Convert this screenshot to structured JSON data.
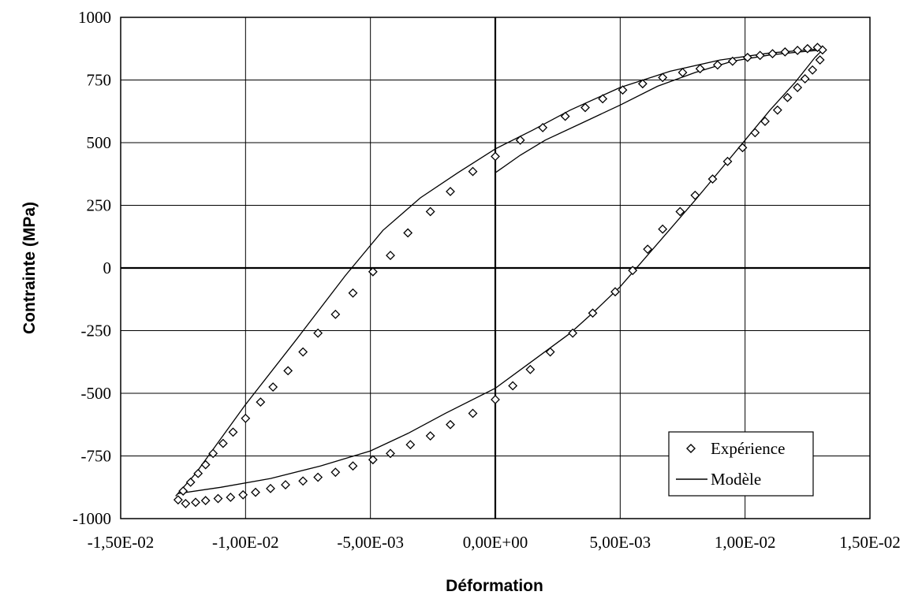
{
  "chart_data": {
    "type": "scatter",
    "title": "",
    "xlabel": "Déformation",
    "ylabel": "Contrainte (MPa)",
    "xlim": [
      -0.015,
      0.015
    ],
    "ylim": [
      -1000,
      1000
    ],
    "x_ticks": [
      -0.015,
      -0.01,
      -0.005,
      0,
      0.005,
      0.01,
      0.015
    ],
    "x_tick_labels": [
      "-1,50E-02",
      "-1,00E-02",
      "-5,00E-03",
      "0,00E+00",
      "5,00E-03",
      "1,00E-02",
      "1,50E-02"
    ],
    "y_ticks": [
      -1000,
      -750,
      -500,
      -250,
      0,
      250,
      500,
      750,
      1000
    ],
    "y_tick_labels": [
      "-1000",
      "-750",
      "-500",
      "-250",
      "0",
      "250",
      "500",
      "750",
      "1000"
    ],
    "grid": true,
    "legend_position": "bottom-right",
    "series": [
      {
        "name": "Expérience",
        "marker": "diamond",
        "color": "#000000",
        "points": [
          [
            0.0131,
            870
          ],
          [
            0.013,
            830
          ],
          [
            0.0127,
            790
          ],
          [
            0.0124,
            755
          ],
          [
            0.0121,
            720
          ],
          [
            0.0117,
            680
          ],
          [
            0.0113,
            630
          ],
          [
            0.0108,
            585
          ],
          [
            0.0104,
            540
          ],
          [
            0.0099,
            480
          ],
          [
            0.0093,
            425
          ],
          [
            0.0087,
            355
          ],
          [
            0.008,
            290
          ],
          [
            0.0074,
            225
          ],
          [
            0.0067,
            155
          ],
          [
            0.0061,
            75
          ],
          [
            0.0055,
            -10
          ],
          [
            0.0048,
            -95
          ],
          [
            0.0039,
            -180
          ],
          [
            0.0031,
            -260
          ],
          [
            0.0022,
            -335
          ],
          [
            0.0014,
            -405
          ],
          [
            0.0007,
            -470
          ],
          [
            0.0,
            -525
          ],
          [
            -0.0009,
            -580
          ],
          [
            -0.0018,
            -625
          ],
          [
            -0.0026,
            -670
          ],
          [
            -0.0034,
            -705
          ],
          [
            -0.0042,
            -740
          ],
          [
            -0.0049,
            -765
          ],
          [
            -0.0057,
            -790
          ],
          [
            -0.0064,
            -815
          ],
          [
            -0.0071,
            -835
          ],
          [
            -0.0077,
            -850
          ],
          [
            -0.0084,
            -865
          ],
          [
            -0.009,
            -880
          ],
          [
            -0.0096,
            -895
          ],
          [
            -0.0101,
            -905
          ],
          [
            -0.0106,
            -915
          ],
          [
            -0.0111,
            -920
          ],
          [
            -0.0116,
            -928
          ],
          [
            -0.012,
            -935
          ],
          [
            -0.0124,
            -940
          ],
          [
            -0.0127,
            -925
          ],
          [
            -0.0125,
            -890
          ],
          [
            -0.0122,
            -855
          ],
          [
            -0.0119,
            -820
          ],
          [
            -0.0116,
            -785
          ],
          [
            -0.0113,
            -740
          ],
          [
            -0.0109,
            -700
          ],
          [
            -0.0105,
            -655
          ],
          [
            -0.01,
            -600
          ],
          [
            -0.0094,
            -535
          ],
          [
            -0.0089,
            -475
          ],
          [
            -0.0083,
            -410
          ],
          [
            -0.0077,
            -335
          ],
          [
            -0.0071,
            -260
          ],
          [
            -0.0064,
            -185
          ],
          [
            -0.0057,
            -100
          ],
          [
            -0.0049,
            -15
          ],
          [
            -0.0042,
            50
          ],
          [
            -0.0035,
            140
          ],
          [
            -0.0026,
            225
          ],
          [
            -0.0018,
            305
          ],
          [
            -0.0009,
            385
          ],
          [
            0.0,
            445
          ],
          [
            0.001,
            510
          ],
          [
            0.0019,
            560
          ],
          [
            0.0028,
            605
          ],
          [
            0.0036,
            640
          ],
          [
            0.0043,
            675
          ],
          [
            0.0051,
            710
          ],
          [
            0.0059,
            735
          ],
          [
            0.0067,
            760
          ],
          [
            0.0075,
            780
          ],
          [
            0.0082,
            795
          ],
          [
            0.0089,
            810
          ],
          [
            0.0095,
            825
          ],
          [
            0.0101,
            840
          ],
          [
            0.0106,
            848
          ],
          [
            0.0111,
            855
          ],
          [
            0.0116,
            862
          ],
          [
            0.0121,
            868
          ],
          [
            0.0125,
            875
          ],
          [
            0.0129,
            880
          ]
        ]
      },
      {
        "name": "Modèle",
        "marker": "line",
        "color": "#000000",
        "points": [
          [
            0.0,
            380
          ],
          [
            0.001,
            450
          ],
          [
            0.002,
            510
          ],
          [
            0.0035,
            580
          ],
          [
            0.005,
            650
          ],
          [
            0.0065,
            725
          ],
          [
            0.008,
            780
          ],
          [
            0.0095,
            825
          ],
          [
            0.011,
            850
          ],
          [
            0.0122,
            862
          ],
          [
            0.0131,
            870
          ],
          [
            0.0128,
            840
          ],
          [
            0.012,
            740
          ],
          [
            0.011,
            630
          ],
          [
            0.01,
            510
          ],
          [
            0.009,
            390
          ],
          [
            0.008,
            270
          ],
          [
            0.007,
            155
          ],
          [
            0.006,
            40
          ],
          [
            0.005,
            -75
          ],
          [
            0.004,
            -170
          ],
          [
            0.003,
            -260
          ],
          [
            0.0015,
            -370
          ],
          [
            0.0,
            -480
          ],
          [
            -0.002,
            -580
          ],
          [
            -0.0035,
            -660
          ],
          [
            -0.005,
            -730
          ],
          [
            -0.007,
            -790
          ],
          [
            -0.009,
            -840
          ],
          [
            -0.011,
            -875
          ],
          [
            -0.0127,
            -900
          ],
          [
            -0.0128,
            -910
          ],
          [
            -0.012,
            -820
          ],
          [
            -0.01,
            -545
          ],
          [
            -0.008,
            -290
          ],
          [
            -0.006,
            -30
          ],
          [
            -0.0045,
            150
          ],
          [
            -0.003,
            280
          ],
          [
            -0.0015,
            380
          ],
          [
            0.0,
            475
          ],
          [
            0.0015,
            550
          ],
          [
            0.003,
            630
          ],
          [
            0.005,
            720
          ],
          [
            0.007,
            785
          ],
          [
            0.009,
            830
          ],
          [
            0.011,
            858
          ],
          [
            0.0125,
            870
          ],
          [
            0.0131,
            875
          ]
        ]
      }
    ]
  }
}
